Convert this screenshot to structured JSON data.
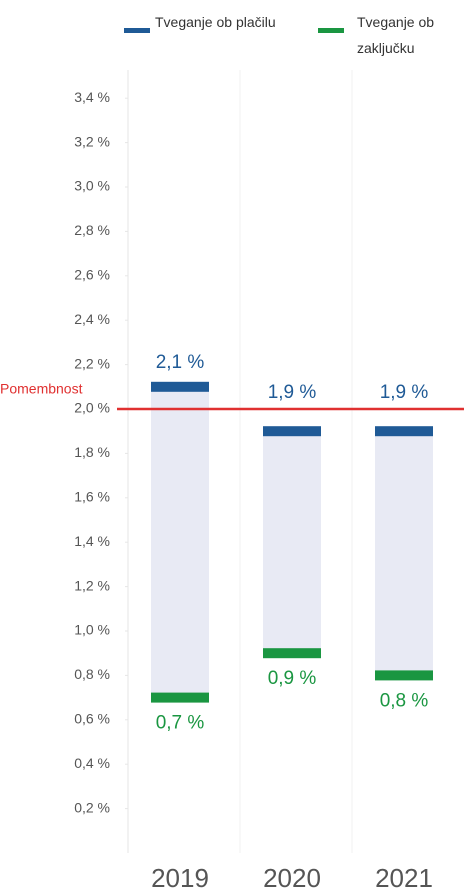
{
  "chart_data": {
    "type": "floating_range",
    "categories": [
      "2019",
      "2020",
      "2021"
    ],
    "series": [
      {
        "name": "Tveganje ob plačilu",
        "color": "#1f5a96",
        "values": [
          2.1,
          1.9,
          1.9
        ],
        "value_labels": [
          "2,1 %",
          "1,9 %",
          "1,9 %"
        ]
      },
      {
        "name": "Tveganje ob zaključku",
        "color": "#1a9641",
        "values": [
          0.7,
          0.9,
          0.8
        ],
        "value_labels": [
          "0,7 %",
          "0,9 %",
          "0,8 %"
        ]
      }
    ],
    "range_color": "#e8eaf4",
    "reference_line": {
      "value": 2.0,
      "label": "Pomembnost",
      "color": "#e03030"
    },
    "ylim": [
      0,
      3.5
    ],
    "yticks": [
      {
        "value": 0.2,
        "label": "0,2 %"
      },
      {
        "value": 0.4,
        "label": "0,4 %"
      },
      {
        "value": 0.6,
        "label": "0,6 %"
      },
      {
        "value": 0.8,
        "label": "0,8 %"
      },
      {
        "value": 1.0,
        "label": "1,0 %"
      },
      {
        "value": 1.2,
        "label": "1,2 %"
      },
      {
        "value": 1.4,
        "label": "1,4 %"
      },
      {
        "value": 1.6,
        "label": "1,6 %"
      },
      {
        "value": 1.8,
        "label": "1,8 %"
      },
      {
        "value": 2.0,
        "label": "2,0 %"
      },
      {
        "value": 2.2,
        "label": "2,2 %"
      },
      {
        "value": 2.4,
        "label": "2,4 %"
      },
      {
        "value": 2.6,
        "label": "2,6 %"
      },
      {
        "value": 2.8,
        "label": "2,8 %"
      },
      {
        "value": 3.0,
        "label": "3,0 %"
      },
      {
        "value": 3.2,
        "label": "3,2 %"
      },
      {
        "value": 3.4,
        "label": "3,4 %"
      }
    ]
  }
}
